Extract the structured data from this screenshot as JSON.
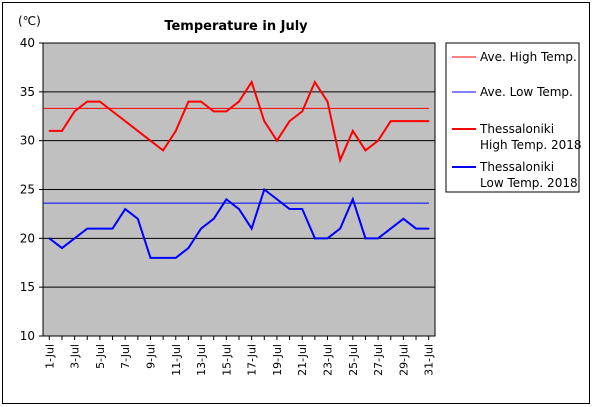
{
  "chart_data": {
    "type": "line",
    "title": "Temperature in July",
    "unit_label": "(℃)",
    "xlabel": "",
    "ylabel": "",
    "ylim": [
      10,
      40
    ],
    "yticks": [
      10,
      15,
      20,
      25,
      30,
      35,
      40
    ],
    "grid": true,
    "legend_position": "right",
    "x": [
      "1-Jul",
      "2-Jul",
      "3-Jul",
      "4-Jul",
      "5-Jul",
      "6-Jul",
      "7-Jul",
      "8-Jul",
      "9-Jul",
      "10-Jul",
      "11-Jul",
      "12-Jul",
      "13-Jul",
      "14-Jul",
      "15-Jul",
      "16-Jul",
      "17-Jul",
      "18-Jul",
      "19-Jul",
      "20-Jul",
      "21-Jul",
      "22-Jul",
      "23-Jul",
      "24-Jul",
      "25-Jul",
      "26-Jul",
      "27-Jul",
      "28-Jul",
      "29-Jul",
      "30-Jul",
      "31-Jul"
    ],
    "xtick_labels": [
      "1-Jul",
      "3-Jul",
      "5-Jul",
      "7-Jul",
      "9-Jul",
      "11-Jul",
      "13-Jul",
      "15-Jul",
      "17-Jul",
      "19-Jul",
      "21-Jul",
      "23-Jul",
      "25-Jul",
      "27-Jul",
      "29-Jul",
      "31-Jul"
    ],
    "reference_lines": [
      {
        "name": "Ave. High Temp.",
        "value": 33.3,
        "color": "#ff0000"
      },
      {
        "name": "Ave. Low Temp.",
        "value": 23.6,
        "color": "#0000ff"
      }
    ],
    "series": [
      {
        "name": "Thessaloniki High Temp. 2018",
        "name_lines": [
          "Thessaloniki",
          "High Temp. 2018"
        ],
        "color": "#ff0000",
        "values": [
          31,
          31,
          33,
          34,
          34,
          33,
          32,
          31,
          30,
          29,
          31,
          34,
          34,
          33,
          33,
          34,
          36,
          32,
          30,
          32,
          33,
          36,
          34,
          28,
          31,
          29,
          30,
          32,
          32,
          32,
          32
        ]
      },
      {
        "name": "Thessaloniki Low Temp. 2018",
        "name_lines": [
          "Thessaloniki",
          "Low Temp. 2018"
        ],
        "color": "#0000ff",
        "values": [
          20,
          19,
          20,
          21,
          21,
          21,
          23,
          22,
          18,
          18,
          18,
          19,
          21,
          22,
          24,
          23,
          21,
          25,
          24,
          23,
          23,
          20,
          20,
          21,
          24,
          20,
          20,
          21,
          22,
          21,
          21
        ]
      }
    ]
  }
}
